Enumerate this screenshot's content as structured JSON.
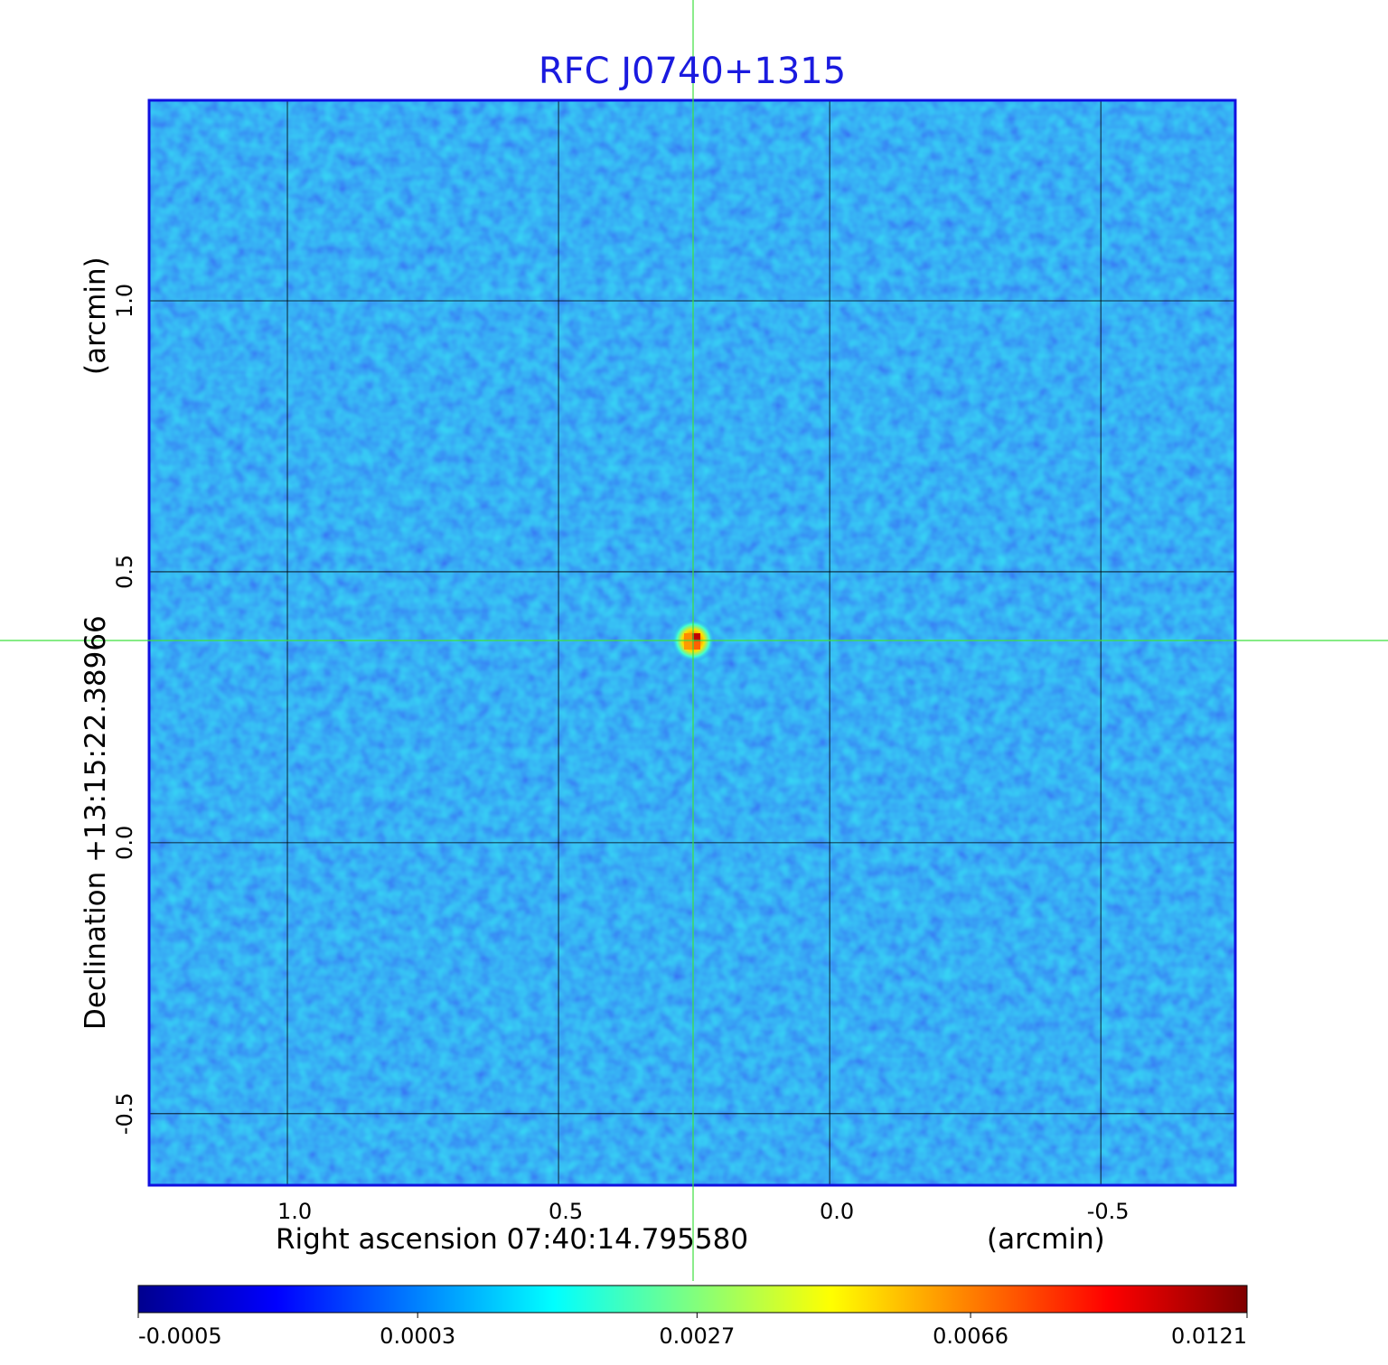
{
  "chart_data": {
    "type": "image",
    "title": "RFC J0740+1315",
    "x_label": "Right ascension  07:40:14.795580",
    "x_unit": "(arcmin)",
    "y_label": "Declination  +13:15:22.38966",
    "y_unit": "(arcmin)",
    "xlim": [
      1.255,
      -0.748
    ],
    "ylim": [
      -0.632,
      1.37
    ],
    "xticks": [
      {
        "value": 1,
        "label": "1.0"
      },
      {
        "value": 0.5,
        "label": "0.5"
      },
      {
        "value": 0,
        "label": "0.0"
      },
      {
        "value": -0.5,
        "label": "-0.5"
      }
    ],
    "yticks": [
      {
        "value": 1,
        "label": "1.0"
      },
      {
        "value": 0.5,
        "label": "0.5"
      },
      {
        "value": 0,
        "label": "0.0"
      },
      {
        "value": -0.5,
        "label": "-0.5"
      }
    ],
    "grid": true,
    "colorbar": {
      "scale": "sqrt",
      "lim": [
        -0.0005,
        0.0121
      ],
      "ticks": [
        -0.0005,
        0.0003,
        0.0027,
        0.0066,
        0.0121
      ]
    }
  }
}
